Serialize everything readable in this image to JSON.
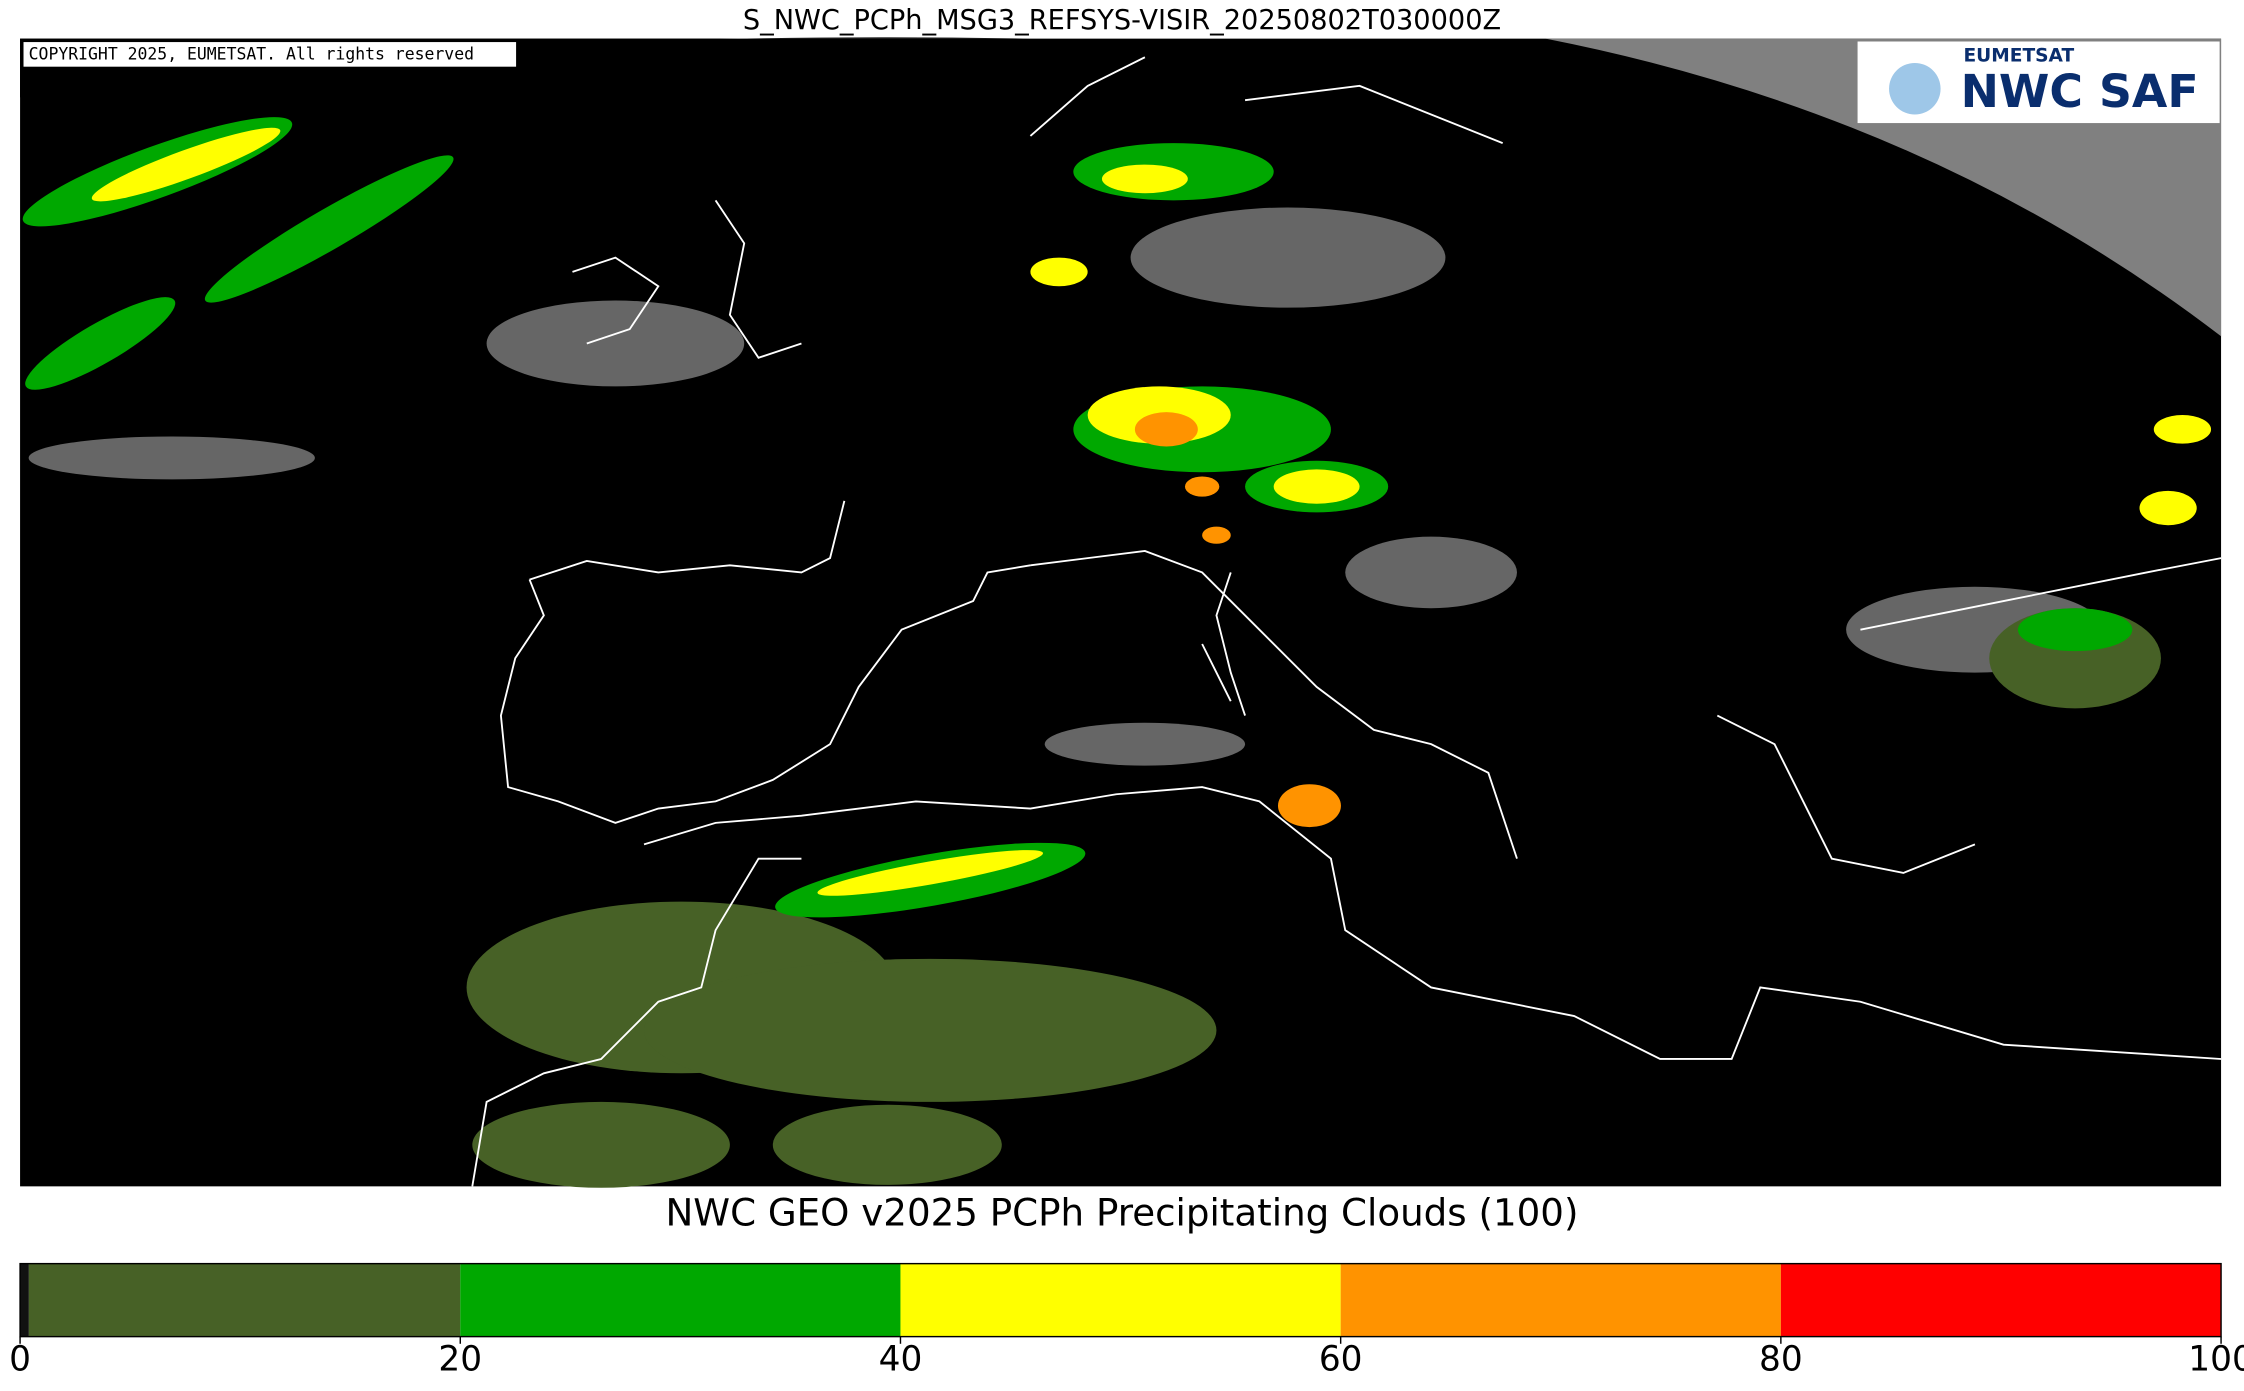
{
  "title": "S_NWC_PCPh_MSG3_REFSYS-VISIR_20250802T030000Z",
  "copyright": "COPYRIGHT 2025, EUMETSAT. All rights reserved",
  "logo": {
    "org": "EUMETSAT",
    "product": "NWC SAF"
  },
  "colorbar": {
    "title": "NWC GEO v2025 PCPh Precipitating Clouds (100)",
    "xlim": [
      0,
      100
    ],
    "bins": [
      0,
      0.4,
      20,
      40,
      60,
      80,
      100
    ],
    "colors": [
      "#111111",
      "#476126",
      "#00a800",
      "#ffff00",
      "#ff9300",
      "#ff0000"
    ],
    "ticks": [
      0,
      20,
      40,
      60,
      80,
      100
    ]
  }
}
